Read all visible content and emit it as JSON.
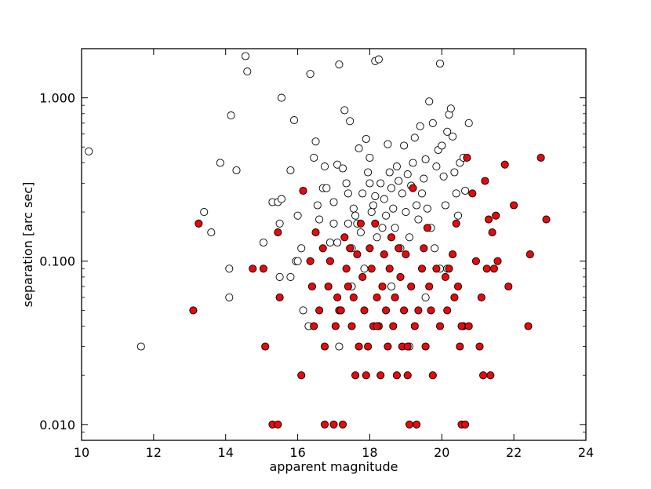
{
  "chart_data": {
    "type": "scatter",
    "xlabel": "apparent magnitude",
    "ylabel": "separation [arc sec]",
    "xlim": [
      10,
      24
    ],
    "ylim": [
      0.008,
      2.0
    ],
    "yscale": "log",
    "x_ticks": [
      10,
      12,
      14,
      16,
      18,
      20,
      22,
      24
    ],
    "x_tick_labels": [
      "10",
      "12",
      "14",
      "16",
      "18",
      "20",
      "22",
      "24"
    ],
    "y_ticks": [
      0.01,
      0.1,
      1.0
    ],
    "y_tick_labels": [
      "0.010",
      "0.100",
      "1.000"
    ],
    "grid": false,
    "legend": "none",
    "series": [
      {
        "color": "#ffffff",
        "points": [
          [
            10.2,
            0.47
          ],
          [
            11.65,
            0.03
          ],
          [
            13.4,
            0.2
          ],
          [
            13.6,
            0.15
          ],
          [
            13.85,
            0.4
          ],
          [
            14.1,
            0.09
          ],
          [
            14.1,
            0.06
          ],
          [
            14.15,
            0.78
          ],
          [
            14.3,
            0.36
          ],
          [
            14.55,
            1.8
          ],
          [
            14.6,
            1.45
          ],
          [
            15.05,
            0.13
          ],
          [
            15.3,
            0.23
          ],
          [
            15.45,
            0.23
          ],
          [
            15.5,
            0.17
          ],
          [
            15.5,
            0.08
          ],
          [
            15.55,
            0.24
          ],
          [
            15.55,
            1.0
          ],
          [
            15.8,
            0.36
          ],
          [
            15.9,
            0.73
          ],
          [
            15.95,
            0.1
          ],
          [
            15.8,
            0.08
          ],
          [
            16.0,
            0.1
          ],
          [
            16.0,
            0.19
          ],
          [
            16.1,
            0.12
          ],
          [
            16.15,
            0.05
          ],
          [
            16.3,
            0.04
          ],
          [
            16.35,
            1.4
          ],
          [
            16.45,
            0.43
          ],
          [
            16.5,
            0.54
          ],
          [
            16.55,
            0.22
          ],
          [
            16.6,
            0.18
          ],
          [
            16.7,
            0.28
          ],
          [
            16.75,
            0.38
          ],
          [
            16.8,
            0.28
          ],
          [
            16.9,
            0.13
          ],
          [
            17.0,
            0.17
          ],
          [
            17.0,
            0.23
          ],
          [
            17.1,
            0.39
          ],
          [
            17.1,
            0.13
          ],
          [
            17.15,
            0.03
          ],
          [
            17.15,
            1.6
          ],
          [
            17.25,
            0.37
          ],
          [
            17.3,
            0.84
          ],
          [
            17.35,
            0.3
          ],
          [
            17.4,
            0.26
          ],
          [
            17.4,
            0.17
          ],
          [
            17.45,
            0.72
          ],
          [
            17.5,
            0.12
          ],
          [
            17.55,
            0.21
          ],
          [
            17.6,
            0.19
          ],
          [
            17.65,
            0.17
          ],
          [
            17.7,
            0.49
          ],
          [
            17.75,
            0.15
          ],
          [
            17.8,
            0.26
          ],
          [
            17.85,
            0.09
          ],
          [
            17.9,
            0.56
          ],
          [
            17.95,
            0.35
          ],
          [
            18.0,
            0.43
          ],
          [
            18.0,
            0.3
          ],
          [
            18.05,
            0.2
          ],
          [
            18.1,
            0.22
          ],
          [
            18.15,
            0.25
          ],
          [
            18.15,
            1.68
          ],
          [
            18.2,
            0.14
          ],
          [
            18.25,
            1.72
          ],
          [
            18.3,
            0.3
          ],
          [
            18.35,
            0.16
          ],
          [
            18.4,
            0.24
          ],
          [
            18.45,
            0.19
          ],
          [
            18.5,
            0.52
          ],
          [
            18.55,
            0.35
          ],
          [
            18.6,
            0.28
          ],
          [
            18.65,
            0.21
          ],
          [
            18.7,
            0.16
          ],
          [
            18.75,
            0.38
          ],
          [
            18.8,
            0.31
          ],
          [
            18.85,
            0.12
          ],
          [
            18.9,
            0.26
          ],
          [
            18.95,
            0.51
          ],
          [
            19.0,
            0.2
          ],
          [
            19.05,
            0.34
          ],
          [
            19.1,
            0.14
          ],
          [
            19.1,
            0.03
          ],
          [
            19.15,
            0.29
          ],
          [
            19.2,
            0.4
          ],
          [
            19.25,
            0.57
          ],
          [
            19.3,
            0.22
          ],
          [
            19.35,
            0.18
          ],
          [
            19.4,
            0.67
          ],
          [
            19.45,
            0.26
          ],
          [
            19.5,
            0.32
          ],
          [
            19.55,
            0.42
          ],
          [
            19.6,
            0.21
          ],
          [
            19.65,
            0.95
          ],
          [
            19.7,
            0.16
          ],
          [
            19.75,
            0.7
          ],
          [
            19.8,
            0.12
          ],
          [
            19.85,
            0.38
          ],
          [
            19.9,
            0.48
          ],
          [
            19.95,
            1.62
          ],
          [
            20.0,
            0.51
          ],
          [
            20.05,
            0.33
          ],
          [
            20.1,
            0.22
          ],
          [
            20.15,
            0.62
          ],
          [
            20.2,
            0.79
          ],
          [
            20.25,
            0.86
          ],
          [
            20.3,
            0.58
          ],
          [
            20.35,
            0.35
          ],
          [
            20.4,
            0.26
          ],
          [
            20.45,
            0.19
          ],
          [
            20.5,
            0.4
          ],
          [
            20.6,
            0.43
          ],
          [
            20.65,
            0.27
          ],
          [
            20.75,
            0.7
          ],
          [
            20.15,
            0.09
          ],
          [
            19.95,
            0.09
          ],
          [
            19.55,
            0.06
          ],
          [
            18.6,
            0.07
          ],
          [
            17.5,
            0.07
          ]
        ]
      },
      {
        "color": "#e8090b",
        "points": [
          [
            13.1,
            0.05
          ],
          [
            13.25,
            0.17
          ],
          [
            14.75,
            0.09
          ],
          [
            15.05,
            0.09
          ],
          [
            15.1,
            0.03
          ],
          [
            15.3,
            0.01
          ],
          [
            15.45,
            0.15
          ],
          [
            15.45,
            0.01
          ],
          [
            15.5,
            0.06
          ],
          [
            16.1,
            0.02
          ],
          [
            16.15,
            0.27
          ],
          [
            16.35,
            0.1
          ],
          [
            16.45,
            0.04
          ],
          [
            16.5,
            0.15
          ],
          [
            16.6,
            0.05
          ],
          [
            16.7,
            0.12
          ],
          [
            16.75,
            0.01
          ],
          [
            16.75,
            0.03
          ],
          [
            16.85,
            0.07
          ],
          [
            16.9,
            0.1
          ],
          [
            17.0,
            0.01
          ],
          [
            17.05,
            0.04
          ],
          [
            17.1,
            0.06
          ],
          [
            17.15,
            0.05
          ],
          [
            17.25,
            0.01
          ],
          [
            17.3,
            0.14
          ],
          [
            17.35,
            0.09
          ],
          [
            17.4,
            0.07
          ],
          [
            17.45,
            0.12
          ],
          [
            17.5,
            0.04
          ],
          [
            17.55,
            0.06
          ],
          [
            17.6,
            0.02
          ],
          [
            17.65,
            0.11
          ],
          [
            17.7,
            0.03
          ],
          [
            17.75,
            0.17
          ],
          [
            17.8,
            0.08
          ],
          [
            17.85,
            0.05
          ],
          [
            17.9,
            0.02
          ],
          [
            17.95,
            0.03
          ],
          [
            18.0,
            0.12
          ],
          [
            18.05,
            0.09
          ],
          [
            18.1,
            0.04
          ],
          [
            18.15,
            0.17
          ],
          [
            18.2,
            0.06
          ],
          [
            18.25,
            0.04
          ],
          [
            18.3,
            0.02
          ],
          [
            18.35,
            0.07
          ],
          [
            18.4,
            0.11
          ],
          [
            18.45,
            0.05
          ],
          [
            18.5,
            0.03
          ],
          [
            18.55,
            0.09
          ],
          [
            18.6,
            0.14
          ],
          [
            18.65,
            0.04
          ],
          [
            18.7,
            0.06
          ],
          [
            18.75,
            0.02
          ],
          [
            18.8,
            0.12
          ],
          [
            18.85,
            0.08
          ],
          [
            18.9,
            0.03
          ],
          [
            18.95,
            0.05
          ],
          [
            19.0,
            0.11
          ],
          [
            19.05,
            0.02
          ],
          [
            19.1,
            0.01
          ],
          [
            19.15,
            0.07
          ],
          [
            19.2,
            0.28
          ],
          [
            19.25,
            0.04
          ],
          [
            19.3,
            0.01
          ],
          [
            19.35,
            0.05
          ],
          [
            19.45,
            0.09
          ],
          [
            19.5,
            0.12
          ],
          [
            19.55,
            0.03
          ],
          [
            19.6,
            0.16
          ],
          [
            19.65,
            0.07
          ],
          [
            19.7,
            0.05
          ],
          [
            19.75,
            0.02
          ],
          [
            19.85,
            0.09
          ],
          [
            19.95,
            0.04
          ],
          [
            20.1,
            0.08
          ],
          [
            20.15,
            0.05
          ],
          [
            20.2,
            0.09
          ],
          [
            20.3,
            0.11
          ],
          [
            20.35,
            0.06
          ],
          [
            20.4,
            0.17
          ],
          [
            20.45,
            0.07
          ],
          [
            20.5,
            0.03
          ],
          [
            20.55,
            0.01
          ],
          [
            20.6,
            0.04
          ],
          [
            20.65,
            0.01
          ],
          [
            20.7,
            0.43
          ],
          [
            20.75,
            0.04
          ],
          [
            20.85,
            0.26
          ],
          [
            20.95,
            0.1
          ],
          [
            21.05,
            0.03
          ],
          [
            21.1,
            0.06
          ],
          [
            21.15,
            0.02
          ],
          [
            21.2,
            0.31
          ],
          [
            21.25,
            0.09
          ],
          [
            21.3,
            0.18
          ],
          [
            21.35,
            0.02
          ],
          [
            21.4,
            0.15
          ],
          [
            21.45,
            0.09
          ],
          [
            21.5,
            0.19
          ],
          [
            21.55,
            0.1
          ],
          [
            21.75,
            0.39
          ],
          [
            21.85,
            0.07
          ],
          [
            22.0,
            0.22
          ],
          [
            22.4,
            0.04
          ],
          [
            22.45,
            0.11
          ],
          [
            22.75,
            0.43
          ],
          [
            22.9,
            0.18
          ],
          [
            16.4,
            0.07
          ],
          [
            17.2,
            0.05
          ],
          [
            18.2,
            0.04
          ],
          [
            19.05,
            0.03
          ],
          [
            20.55,
            0.04
          ]
        ]
      }
    ]
  }
}
